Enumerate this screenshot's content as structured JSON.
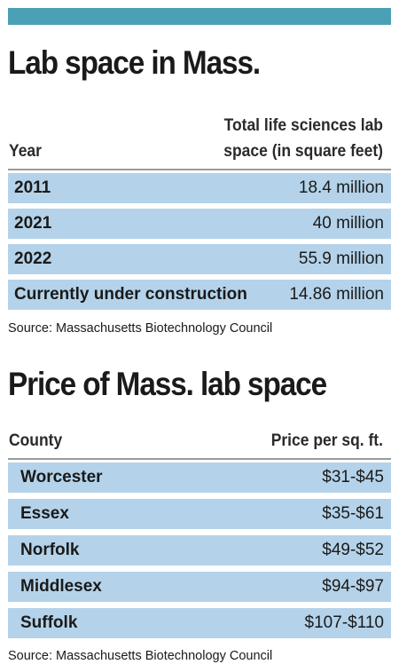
{
  "chart_data": [
    {
      "type": "table",
      "title": "Lab space in Mass.",
      "columns": [
        "Year",
        "Total life sciences lab space (in square feet)"
      ],
      "column_header_lines": [
        "Total life sciences lab",
        "space (in square feet)"
      ],
      "rows": [
        {
          "label": "2011",
          "value": "18.4 million"
        },
        {
          "label": "2021",
          "value": "40 million"
        },
        {
          "label": "2022",
          "value": "55.9 million"
        },
        {
          "label": "Currently under construction",
          "value": "14.86 million"
        }
      ],
      "source": "Source: Massachusetts Biotechnology Council"
    },
    {
      "type": "table",
      "title": "Price of Mass. lab space",
      "columns": [
        "County",
        "Price per sq. ft."
      ],
      "rows": [
        {
          "label": "Worcester",
          "value": "$31-$45"
        },
        {
          "label": "Essex",
          "value": "$35-$61"
        },
        {
          "label": "Norfolk",
          "value": "$49-$52"
        },
        {
          "label": "Middlesex",
          "value": "$94-$97"
        },
        {
          "label": "Suffolk",
          "value": "$107-$110"
        }
      ],
      "source": "Source: Massachusetts Biotechnology Council"
    }
  ],
  "colors": {
    "top_bar": "#4ba0b5",
    "row_fill": "#b4d3ea",
    "rule": "#9a9a9a",
    "text": "#1a1a1a"
  }
}
